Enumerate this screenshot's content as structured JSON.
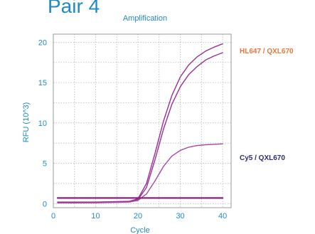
{
  "header": {
    "title": "Pair 4"
  },
  "chart_data": {
    "type": "line",
    "title": "Amplification",
    "xlabel": "Cycle",
    "ylabel": "RFU (10^3)",
    "xlim": [
      0,
      42
    ],
    "ylim": [
      -0.5,
      21
    ],
    "xticks": [
      0,
      10,
      20,
      30,
      40
    ],
    "yticks": [
      0,
      5,
      10,
      15,
      20
    ],
    "grid": true,
    "x": [
      1,
      5,
      10,
      15,
      18,
      20,
      22,
      24,
      26,
      28,
      30,
      32,
      34,
      36,
      38,
      40
    ],
    "series": [
      {
        "values": [
          0.2,
          0.2,
          0.2,
          0.25,
          0.3,
          0.6,
          2.5,
          6.2,
          10.2,
          13.4,
          15.7,
          17.2,
          18.2,
          18.9,
          19.4,
          19.8
        ]
      },
      {
        "values": [
          0.1,
          0.1,
          0.15,
          0.2,
          0.25,
          0.5,
          2.0,
          5.4,
          9.2,
          12.3,
          14.5,
          16.0,
          17.0,
          17.8,
          18.3,
          18.7
        ]
      },
      {
        "values": [
          0.1,
          0.1,
          0.1,
          0.15,
          0.2,
          0.4,
          1.2,
          2.8,
          4.6,
          5.9,
          6.6,
          7.0,
          7.2,
          7.3,
          7.35,
          7.4
        ]
      },
      {
        "values": [
          0.7,
          0.7,
          0.7,
          0.7,
          0.7,
          0.7,
          0.7,
          0.7,
          0.7,
          0.7,
          0.7,
          0.7,
          0.7,
          0.7,
          0.7,
          0.7
        ]
      }
    ],
    "annotations": [
      {
        "text": "HL647 / QXL670",
        "color": "#e8773a",
        "near_value": 19.2
      },
      {
        "text": "Cy5 / QXL670",
        "color": "#2b2f6e",
        "near_value": 7.0
      }
    ],
    "colors": {
      "series": [
        "#9b2f93",
        "#9b2f93",
        "#a54aa0",
        "#8e1f86"
      ],
      "text": "#1f8ac4"
    }
  }
}
